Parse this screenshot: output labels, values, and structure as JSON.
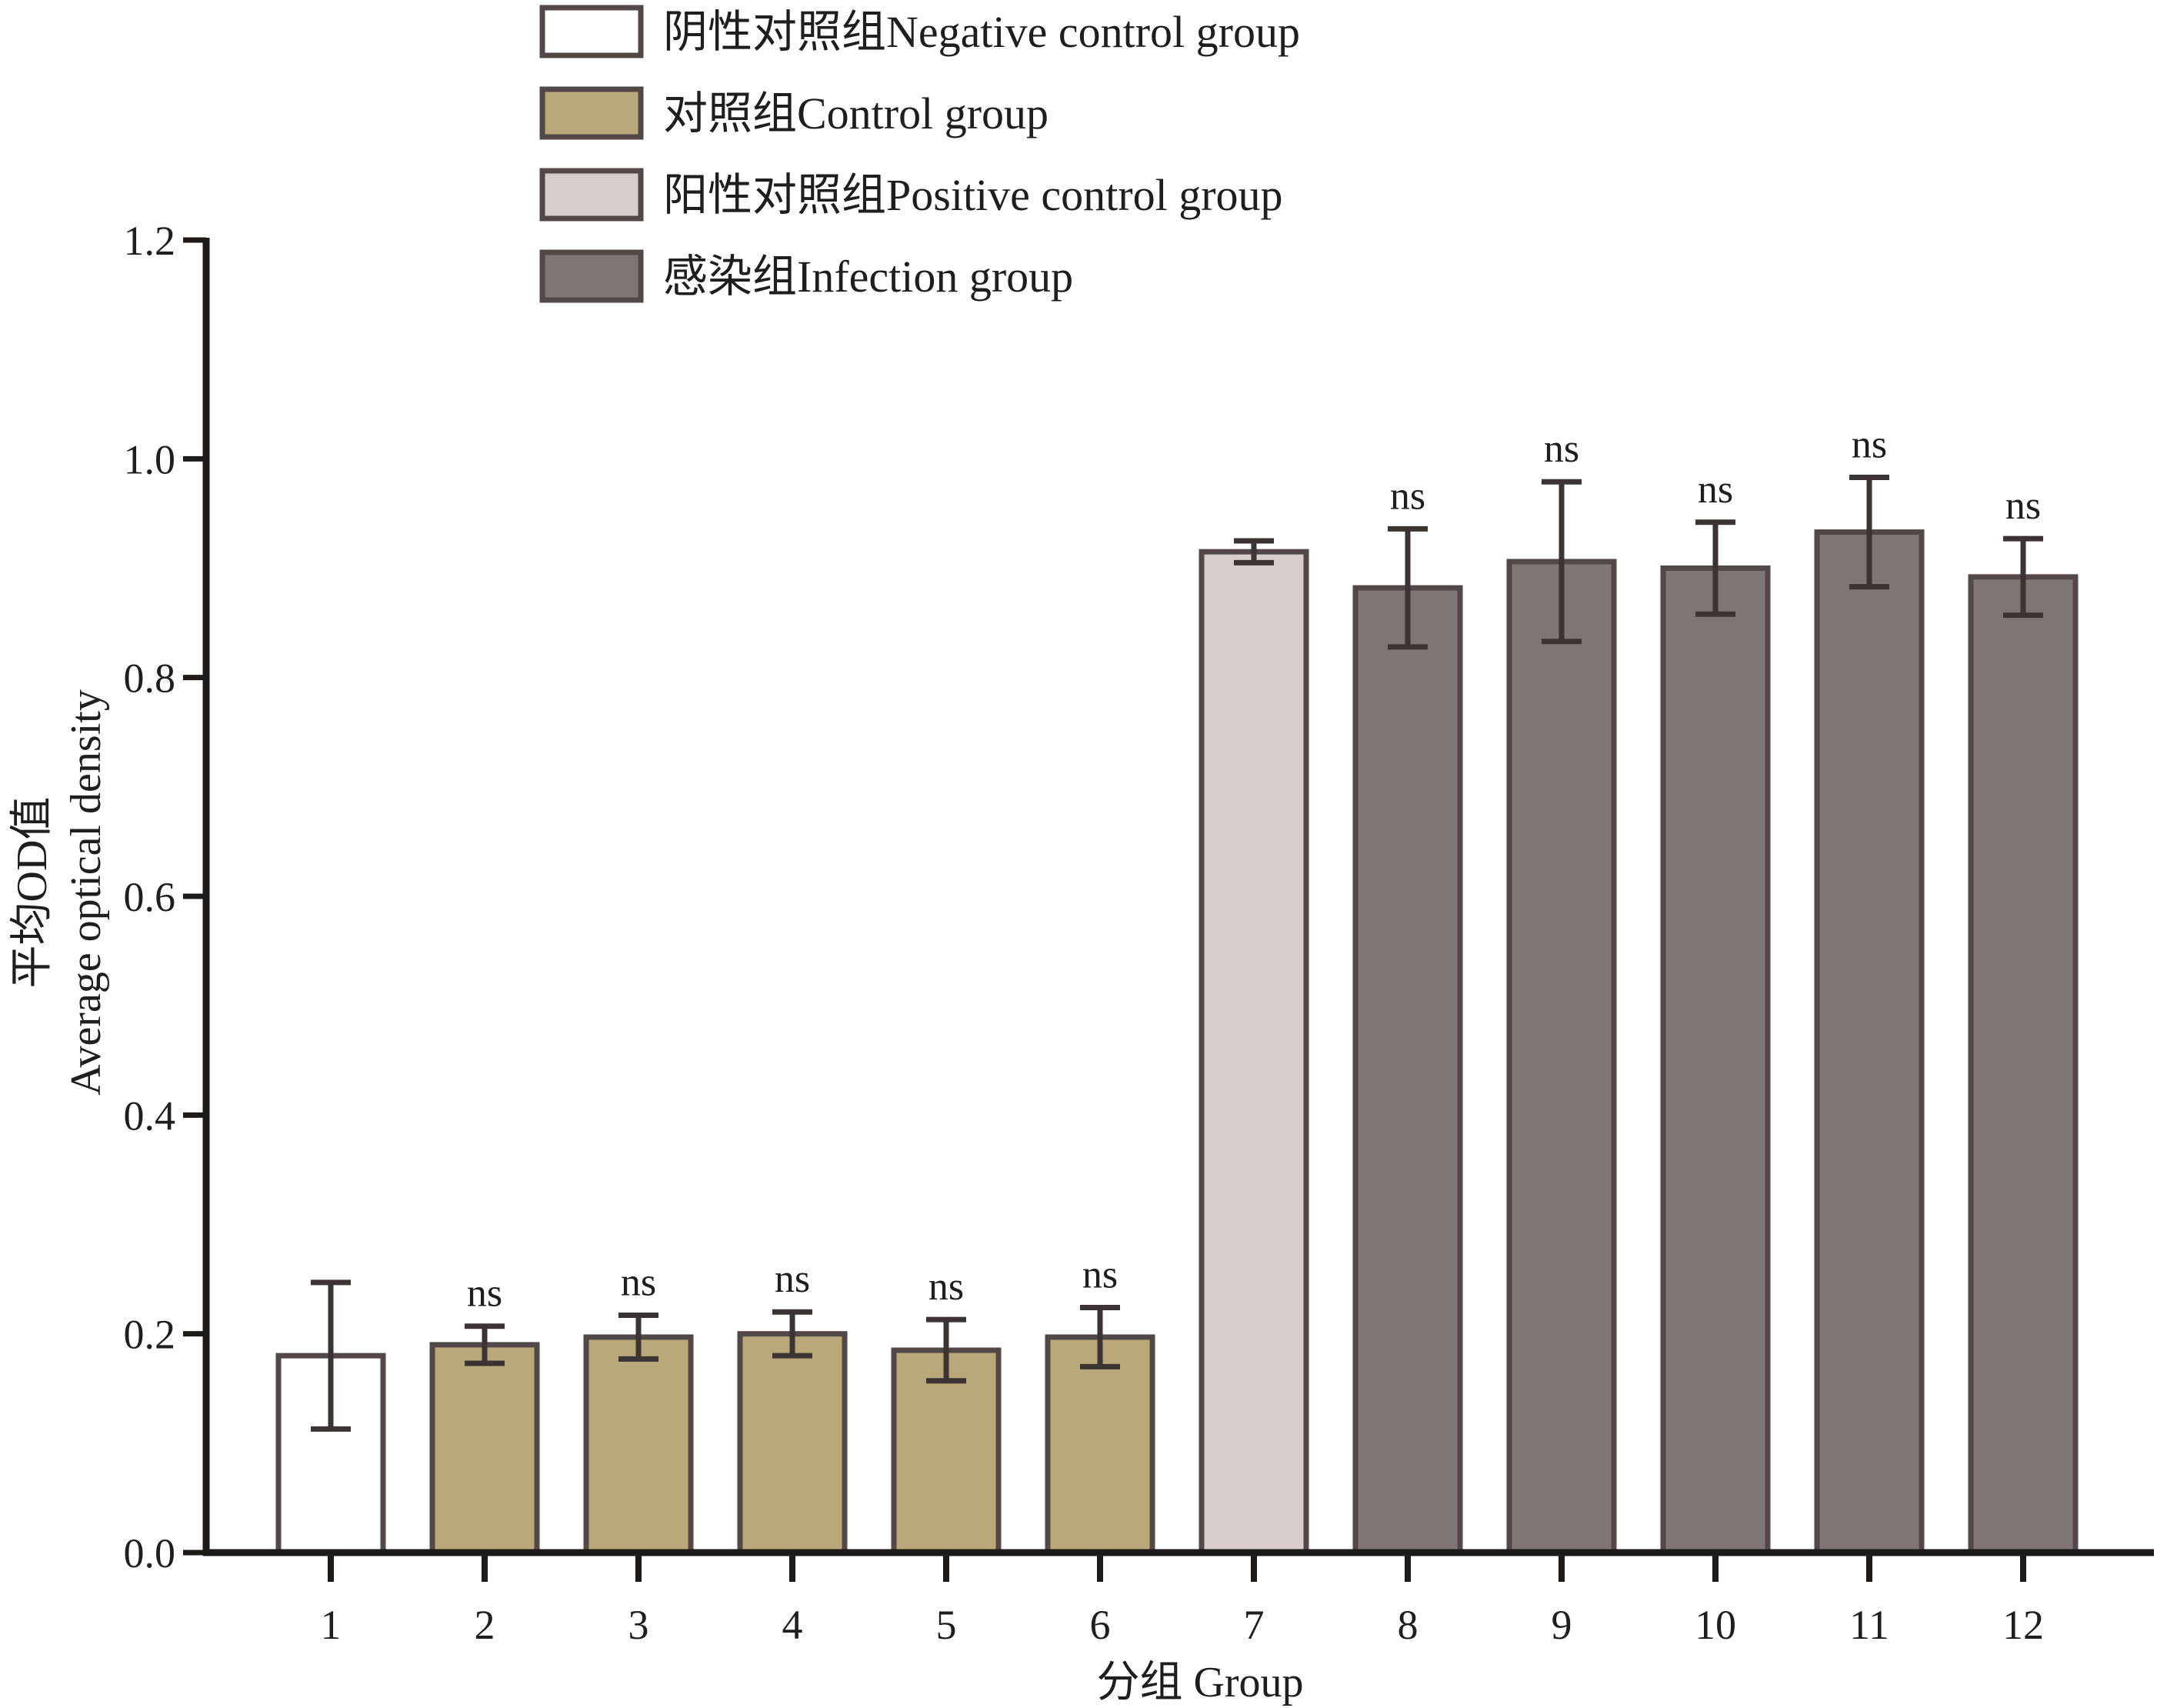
{
  "chart_data": {
    "type": "bar",
    "title": "",
    "xlabel": "分组 Group",
    "ylabel_line1": "平均OD值",
    "ylabel_line2": "Average optical density",
    "ylim": [
      0,
      1.2
    ],
    "yticks": [
      "0.0",
      "0.2",
      "0.4",
      "0.6",
      "0.8",
      "1.0",
      "1.2"
    ],
    "ytick_values": [
      0,
      0.2,
      0.4,
      0.6,
      0.8,
      1.0,
      1.2
    ],
    "grid": false,
    "legend_position": "top",
    "categories": [
      "1",
      "2",
      "3",
      "4",
      "5",
      "6",
      "7",
      "8",
      "9",
      "10",
      "11",
      "12"
    ],
    "values": [
      0.18,
      0.19,
      0.197,
      0.2,
      0.185,
      0.197,
      0.915,
      0.882,
      0.906,
      0.9,
      0.933,
      0.892
    ],
    "errors": [
      0.067,
      0.017,
      0.02,
      0.02,
      0.028,
      0.027,
      0.01,
      0.054,
      0.073,
      0.042,
      0.05,
      0.035
    ],
    "groups": [
      0,
      1,
      1,
      1,
      1,
      1,
      2,
      3,
      3,
      3,
      3,
      3
    ],
    "significance": [
      "",
      "ns",
      "ns",
      "ns",
      "ns",
      "ns",
      "",
      "ns",
      "ns",
      "ns",
      "ns",
      "ns"
    ],
    "legend": [
      {
        "label": "阴性对照组Negative control group",
        "color": "#ffffff"
      },
      {
        "label": "对照组Control group",
        "color": "#b9a97a"
      },
      {
        "label": "阳性对照组Positive control group",
        "color": "#d6cdcd"
      },
      {
        "label": "感染组Infection group",
        "color": "#7e7575"
      }
    ]
  }
}
